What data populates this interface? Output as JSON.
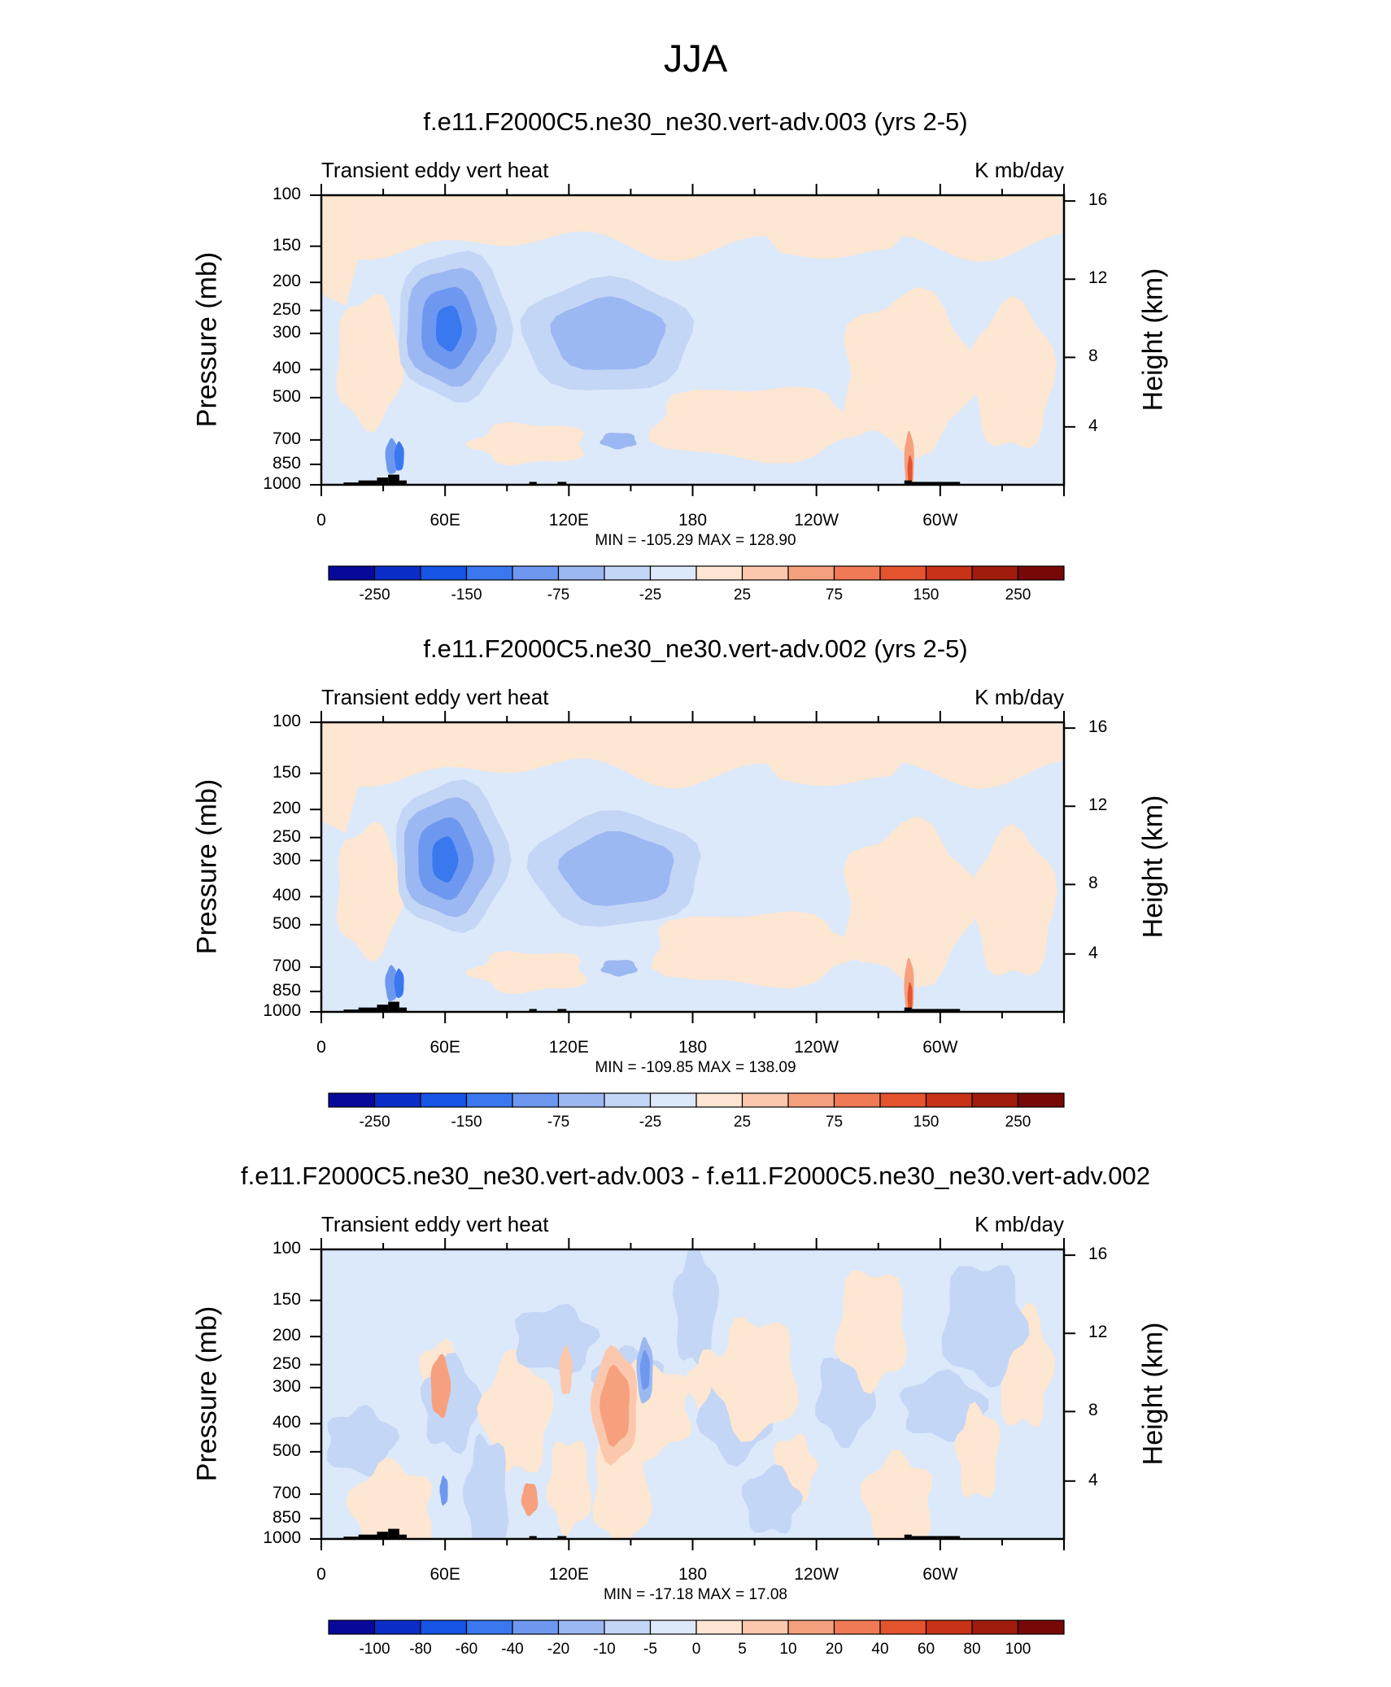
{
  "figure_title": "JJA",
  "chart_data": [
    {
      "type": "heatmap",
      "title": "f.e11.F2000C5.ne30_ne30.vert-adv.003 (yrs 2-5)",
      "left_label": "Transient eddy vert heat",
      "right_label": "K mb/day",
      "ylabel": "Pressure (mb)",
      "ylabel_right": "Height (km)",
      "x_ticks": [
        "0",
        "60E",
        "120E",
        "180",
        "120W",
        "60W"
      ],
      "y_ticks": [
        "100",
        "150",
        "200",
        "250",
        "300",
        "400",
        "500",
        "700",
        "850",
        "1000"
      ],
      "y_ticks_right": [
        "16",
        "12",
        "8",
        "4"
      ],
      "min_max": "MIN = -105.29  MAX = 128.90",
      "colorbar_labels": [
        "-250",
        "-150",
        "-75",
        "-25",
        "25",
        "75",
        "150",
        "250"
      ],
      "features": [
        {
          "lon": 65,
          "p": 290,
          "value": -100
        },
        {
          "lon": 140,
          "p": 300,
          "value": -40
        },
        {
          "lon": 285,
          "p": 820,
          "value": 128.9
        }
      ]
    },
    {
      "type": "heatmap",
      "title": "f.e11.F2000C5.ne30_ne30.vert-adv.002 (yrs 2-5)",
      "left_label": "Transient eddy vert heat",
      "right_label": "K mb/day",
      "ylabel": "Pressure (mb)",
      "ylabel_right": "Height (km)",
      "x_ticks": [
        "0",
        "60E",
        "120E",
        "180",
        "120W",
        "60W"
      ],
      "y_ticks": [
        "100",
        "150",
        "200",
        "250",
        "300",
        "400",
        "500",
        "700",
        "850",
        "1000"
      ],
      "y_ticks_right": [
        "16",
        "12",
        "8",
        "4"
      ],
      "min_max": "MIN = -109.85  MAX = 138.09",
      "colorbar_labels": [
        "-250",
        "-150",
        "-75",
        "-25",
        "25",
        "75",
        "150",
        "250"
      ],
      "features": [
        {
          "lon": 63,
          "p": 300,
          "value": -105
        },
        {
          "lon": 145,
          "p": 320,
          "value": -45
        },
        {
          "lon": 285,
          "p": 820,
          "value": 138.09
        }
      ]
    },
    {
      "type": "heatmap",
      "title": "f.e11.F2000C5.ne30_ne30.vert-adv.003 - f.e11.F2000C5.ne30_ne30.vert-adv.002",
      "left_label": "Transient eddy vert heat",
      "right_label": "K mb/day",
      "ylabel": "Pressure (mb)",
      "ylabel_right": "Height (km)",
      "x_ticks": [
        "0",
        "60E",
        "120E",
        "180",
        "120W",
        "60W"
      ],
      "y_ticks": [
        "100",
        "150",
        "200",
        "250",
        "300",
        "400",
        "500",
        "700",
        "850",
        "1000"
      ],
      "y_ticks_right": [
        "16",
        "12",
        "8",
        "4"
      ],
      "min_max": "MIN = -17.18  MAX = 17.08",
      "colorbar_labels": [
        "-100",
        "-80",
        "-60",
        "-40",
        "-20",
        "-10",
        "-5",
        "0",
        "5",
        "10",
        "20",
        "40",
        "60",
        "80",
        "100"
      ],
      "features": [
        {
          "lon": 143,
          "p": 350,
          "value": 17.08
        },
        {
          "lon": 157,
          "p": 260,
          "value": -17.18
        }
      ]
    }
  ],
  "colors": {
    "colorbar": [
      "#08089a",
      "#0c2ec8",
      "#1654e6",
      "#3a78f0",
      "#6e98f0",
      "#9cb8f2",
      "#c4d6f6",
      "#dce9fa",
      "#fde6d2",
      "#fbc8ae",
      "#f7a07e",
      "#f07a56",
      "#e4542e",
      "#c83216",
      "#a01c0c",
      "#780808"
    ],
    "background_neutral": "#dce9fa",
    "background_warm": "#fde6d2",
    "topography": "#000000"
  }
}
